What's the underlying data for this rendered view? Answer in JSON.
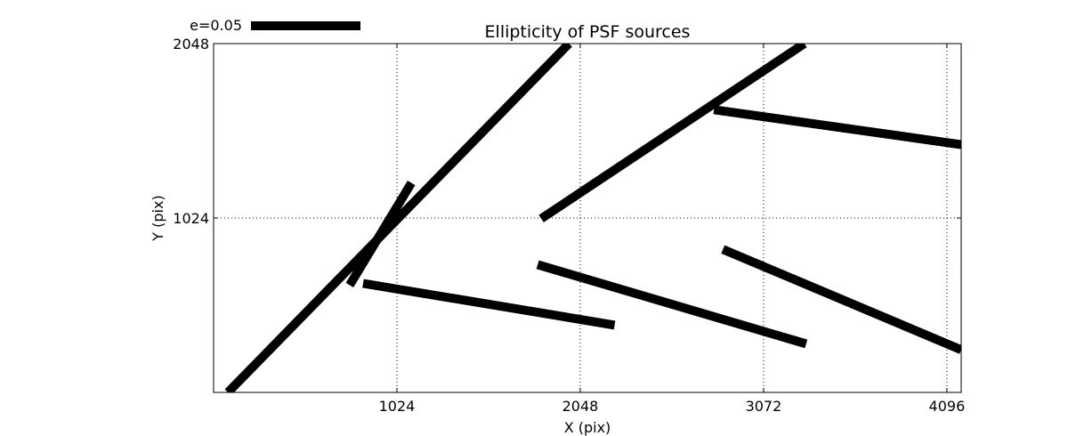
{
  "chart_data": {
    "type": "quiver",
    "title": "Ellipticity of PSF sources",
    "xlabel": "X (pix)",
    "ylabel": "Y (pix)",
    "xlim": [
      0,
      4176
    ],
    "ylim": [
      0,
      2048
    ],
    "xticks": [
      1024,
      2048,
      3072,
      4096
    ],
    "xtick_labels": [
      "1024",
      "2048",
      "3072",
      "4096"
    ],
    "yticks": [
      0,
      1024,
      2048
    ],
    "ytick_labels": [
      "",
      "1024",
      "2048"
    ],
    "grid": true,
    "legend": {
      "label": "e=0.05",
      "placement": "top-left-outside",
      "reference_e": 0.05
    },
    "segments": [
      {
        "x1": 80,
        "y1": 0,
        "x2": 1985,
        "y2": 2048
      },
      {
        "x1": 760,
        "y1": 630,
        "x2": 1105,
        "y2": 1230
      },
      {
        "x1": 835,
        "y1": 640,
        "x2": 2240,
        "y2": 395
      },
      {
        "x1": 1830,
        "y1": 1020,
        "x2": 3300,
        "y2": 2048
      },
      {
        "x1": 1810,
        "y1": 750,
        "x2": 3310,
        "y2": 285
      },
      {
        "x1": 2795,
        "y1": 1660,
        "x2": 4176,
        "y2": 1455
      },
      {
        "x1": 2845,
        "y1": 840,
        "x2": 4176,
        "y2": 250
      }
    ]
  }
}
